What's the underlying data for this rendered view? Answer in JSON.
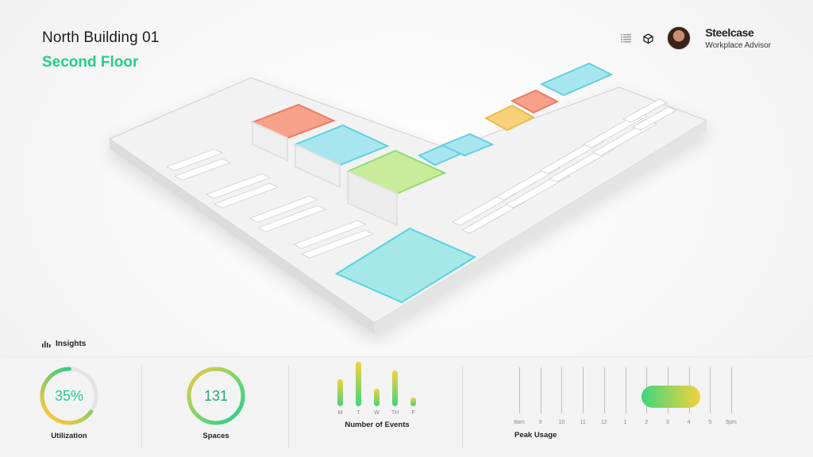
{
  "header": {
    "building": "North Building 01",
    "floor": "Second Floor",
    "icons": [
      "list-icon",
      "cube-icon"
    ],
    "brand": "Steelcase",
    "subtitle": "Workplace Advisor"
  },
  "insights": {
    "label": "Insights"
  },
  "metrics": {
    "utilization": {
      "value": "35%",
      "label": "Utilization",
      "fraction": 0.35
    },
    "spaces": {
      "value": "131",
      "label": "Spaces"
    },
    "events": {
      "label": "Number of Events",
      "days": [
        "M",
        "T",
        "W",
        "TH",
        "F"
      ],
      "values": [
        0.6,
        1.0,
        0.4,
        0.8,
        0.2
      ]
    },
    "peak": {
      "label": "Peak Usage",
      "hours": [
        "8am",
        "9",
        "10",
        "11",
        "12",
        "1",
        "2",
        "3",
        "4",
        "5",
        "6pm"
      ],
      "range": [
        "2",
        "4"
      ]
    }
  },
  "colors": {
    "accent": "#1fcf8a",
    "warm": "#f5c83a",
    "hot": "#f0705a",
    "cool": "#6fd9e6"
  }
}
